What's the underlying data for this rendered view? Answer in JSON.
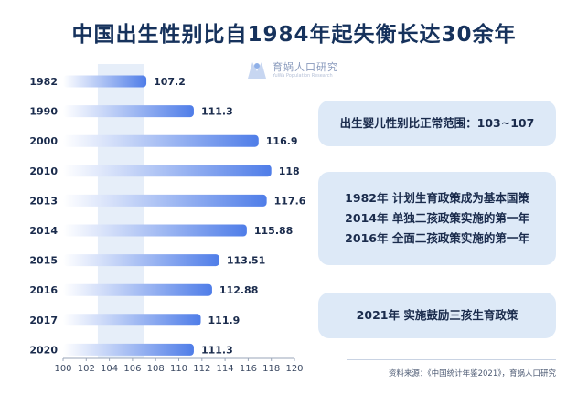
{
  "title": "中国出生性别比自1984年起失衡长达30余年",
  "logo": {
    "name_cn": "育娲人口研究",
    "name_en": "YuWa Population Research"
  },
  "panels": {
    "normal_range": "出生婴儿性别比正常范围：103~107",
    "policies": [
      "1982年  计划生育政策成为基本国策",
      "2014年  单独二孩政策实施的第一年",
      "2016年  全面二孩政策实施的第一年"
    ],
    "policy_2021": "2021年  实施鼓励三孩生育政策"
  },
  "source": "资料来源：《中国统计年鉴2021》，育娲人口研究",
  "colors": {
    "title": "#16325c",
    "bar_start": "#ffffff",
    "bar_end": "#4f7de8",
    "normal_band": "#e6eef9",
    "panel_bg": "#dde9f7"
  },
  "chart_data": {
    "type": "bar",
    "orientation": "horizontal",
    "categories": [
      "1982",
      "1990",
      "2000",
      "2010",
      "2013",
      "2014",
      "2015",
      "2016",
      "2017",
      "2020"
    ],
    "values": [
      107.2,
      111.3,
      116.9,
      118,
      117.6,
      115.88,
      113.51,
      112.88,
      111.9,
      111.3
    ],
    "value_labels": [
      "107.2",
      "111.3",
      "116.9",
      "118",
      "117.6",
      "115.88",
      "113.51",
      "112.88",
      "111.9",
      "111.3"
    ],
    "xlim": [
      100,
      120
    ],
    "xticks": [
      "100",
      "102",
      "104",
      "106",
      "108",
      "110",
      "112",
      "114",
      "116",
      "118",
      "120"
    ],
    "normal_band": [
      103,
      107
    ],
    "grid": false
  }
}
